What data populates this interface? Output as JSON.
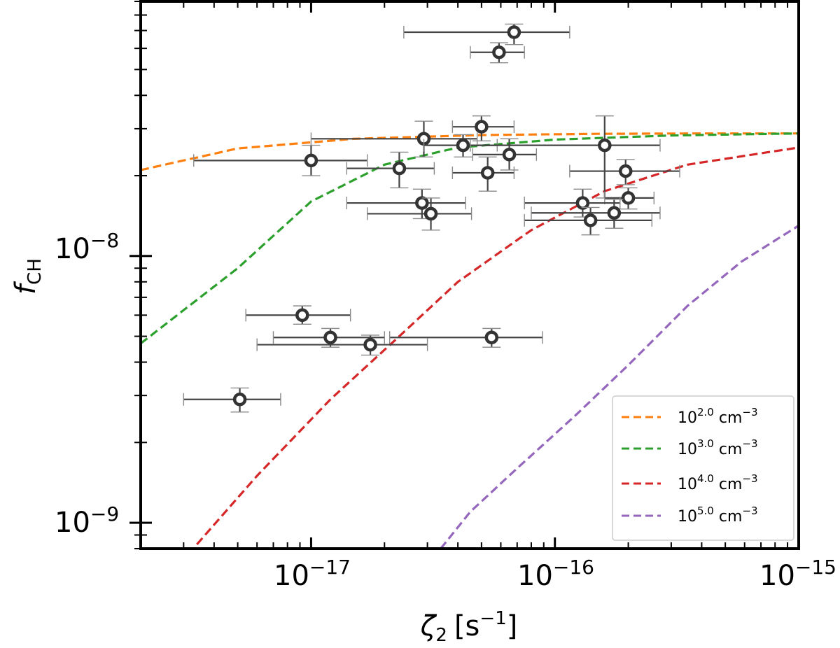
{
  "chart_data": {
    "type": "scatter",
    "xscale": "log",
    "yscale": "log",
    "xlim": [
      2e-18,
      1e-15
    ],
    "ylim": [
      8e-10,
      9e-08
    ],
    "xlabel": {
      "symbol": "ζ",
      "sub": "2",
      "unit": "[s",
      "unit_exp": "−1",
      "unit_close": "]"
    },
    "ylabel": {
      "symbol": "f",
      "sub": "CH"
    },
    "x_ticks": [
      {
        "value": 1e-17,
        "base": "10",
        "exp": "−17"
      },
      {
        "value": 1e-16,
        "base": "10",
        "exp": "−16"
      },
      {
        "value": 1e-15,
        "base": "10",
        "exp": "−15"
      }
    ],
    "y_ticks": [
      {
        "value": 1e-09,
        "base": "10",
        "exp": "−9"
      },
      {
        "value": 1e-08,
        "base": "10",
        "exp": "−8"
      }
    ],
    "points": [
      {
        "x": 6.8e-17,
        "y": 6.9e-08,
        "xlo": 2.4e-17,
        "xhi": 1.15e-16,
        "ylo": 6.2e-08,
        "yhi": 7.4e-08
      },
      {
        "x": 5.9e-17,
        "y": 5.8e-08,
        "xlo": 4.5e-17,
        "xhi": 7.5e-17,
        "ylo": 5.3e-08,
        "yhi": 6.3e-08
      },
      {
        "x": 5e-17,
        "y": 3.05e-08,
        "xlo": 3.8e-17,
        "xhi": 6.8e-17,
        "ylo": 2.7e-08,
        "yhi": 3.35e-08
      },
      {
        "x": 2.9e-17,
        "y": 2.75e-08,
        "xlo": 1e-17,
        "xhi": 4.8e-17,
        "ylo": 2.35e-08,
        "yhi": 3.2e-08
      },
      {
        "x": 4.2e-17,
        "y": 2.6e-08,
        "xlo": 2.9e-17,
        "xhi": 5.8e-17,
        "ylo": 2.35e-08,
        "yhi": 2.85e-08
      },
      {
        "x": 1.6e-16,
        "y": 2.6e-08,
        "xlo": 4.5e-17,
        "xhi": 2.7e-16,
        "ylo": 1.65e-08,
        "yhi": 3.35e-08
      },
      {
        "x": 6.5e-17,
        "y": 2.4e-08,
        "xlo": 4.6e-17,
        "xhi": 8.4e-17,
        "ylo": 2.1e-08,
        "yhi": 2.75e-08
      },
      {
        "x": 1e-17,
        "y": 2.28e-08,
        "xlo": 3.3e-18,
        "xhi": 1.7e-17,
        "ylo": 2e-08,
        "yhi": 2.6e-08
      },
      {
        "x": 2.3e-17,
        "y": 2.13e-08,
        "xlo": 1.4e-17,
        "xhi": 3.2e-17,
        "ylo": 1.8e-08,
        "yhi": 2.45e-08
      },
      {
        "x": 5.3e-17,
        "y": 2.05e-08,
        "xlo": 3.8e-17,
        "xhi": 6.8e-17,
        "ylo": 1.75e-08,
        "yhi": 2.35e-08
      },
      {
        "x": 1.95e-16,
        "y": 2.08e-08,
        "xlo": 1.15e-16,
        "xhi": 3.25e-16,
        "ylo": 1.85e-08,
        "yhi": 2.3e-08
      },
      {
        "x": 2e-16,
        "y": 1.65e-08,
        "xlo": 1.6e-16,
        "xhi": 2.55e-16,
        "ylo": 1.5e-08,
        "yhi": 1.8e-08
      },
      {
        "x": 2.85e-17,
        "y": 1.58e-08,
        "xlo": 1.4e-17,
        "xhi": 4.3e-17,
        "ylo": 1.38e-08,
        "yhi": 1.78e-08
      },
      {
        "x": 1.3e-16,
        "y": 1.58e-08,
        "xlo": 7.5e-17,
        "xhi": 1.85e-16,
        "ylo": 1.4e-08,
        "yhi": 1.78e-08
      },
      {
        "x": 3.1e-17,
        "y": 1.44e-08,
        "xlo": 1.7e-17,
        "xhi": 4.55e-17,
        "ylo": 1.25e-08,
        "yhi": 1.65e-08
      },
      {
        "x": 1.75e-16,
        "y": 1.45e-08,
        "xlo": 8e-17,
        "xhi": 2.7e-16,
        "ylo": 1.27e-08,
        "yhi": 1.63e-08
      },
      {
        "x": 1.4e-16,
        "y": 1.36e-08,
        "xlo": 7.5e-17,
        "xhi": 2.5e-16,
        "ylo": 1.2e-08,
        "yhi": 1.52e-08
      },
      {
        "x": 9.2e-18,
        "y": 6e-09,
        "xlo": 5.4e-18,
        "xhi": 1.45e-17,
        "ylo": 5.55e-09,
        "yhi": 6.5e-09
      },
      {
        "x": 1.2e-17,
        "y": 4.95e-09,
        "xlo": 7e-18,
        "xhi": 2e-17,
        "ylo": 4.55e-09,
        "yhi": 5.35e-09
      },
      {
        "x": 1.75e-17,
        "y": 4.65e-09,
        "xlo": 6e-18,
        "xhi": 3e-17,
        "ylo": 4.25e-09,
        "yhi": 5.05e-09
      },
      {
        "x": 5.5e-17,
        "y": 4.95e-09,
        "xlo": 2.1e-17,
        "xhi": 8.9e-17,
        "ylo": 4.55e-09,
        "yhi": 5.35e-09
      },
      {
        "x": 5.1e-18,
        "y": 2.9e-09,
        "xlo": 3e-18,
        "xhi": 7.5e-18,
        "ylo": 2.6e-09,
        "yhi": 3.2e-09
      }
    ],
    "series": [
      {
        "name": "10^2.0 cm^-3",
        "base": "10",
        "exp": "2.0",
        "unit": " cm",
        "unit_exp": "−3",
        "color": "#ff7f0e",
        "y": [
          2.1e-08,
          2.53e-08,
          2.75e-08,
          2.84e-08,
          2.87e-08,
          2.88e-08,
          2.88e-08
        ],
        "x": [
          2e-18,
          5e-18,
          1.5e-17,
          5e-17,
          1.5e-16,
          4e-16,
          1e-15
        ]
      },
      {
        "name": "10^3.0 cm^-3",
        "base": "10",
        "exp": "3.0",
        "unit": " cm",
        "unit_exp": "−3",
        "color": "#2ca02c",
        "y": [
          4.7e-09,
          9e-09,
          1.6e-08,
          2.2e-08,
          2.55e-08,
          2.73e-08,
          2.83e-08,
          2.88e-08
        ],
        "x": [
          2e-18,
          5e-18,
          1e-17,
          2e-17,
          4e-17,
          1e-16,
          3e-16,
          1e-15
        ]
      },
      {
        "name": "10^4.0 cm^-3",
        "base": "10",
        "exp": "4.0",
        "unit": " cm",
        "unit_exp": "−3",
        "color": "#d62728",
        "y": [
          8.3e-10,
          1.5e-09,
          2.9e-09,
          5e-09,
          8e-09,
          1.25e-08,
          1.75e-08,
          2.2e-08,
          2.55e-08
        ],
        "x": [
          3.4e-18,
          6e-18,
          1.2e-17,
          2.3e-17,
          4e-17,
          8e-17,
          1.6e-16,
          3.5e-16,
          1e-15
        ]
      },
      {
        "name": "10^5.0 cm^-3",
        "base": "10",
        "exp": "5.0",
        "unit": " cm",
        "unit_exp": "−3",
        "color": "#9467bd",
        "y": [
          8e-10,
          1.1e-09,
          1.6e-09,
          2.5e-09,
          3.9e-09,
          6.5e-09,
          9.5e-09,
          1.3e-08
        ],
        "x": [
          3.4e-17,
          4.5e-17,
          7e-17,
          1.2e-16,
          2e-16,
          3.5e-16,
          5.8e-16,
          1e-15
        ]
      }
    ],
    "legend_position": "bottom-right",
    "grid": false
  }
}
